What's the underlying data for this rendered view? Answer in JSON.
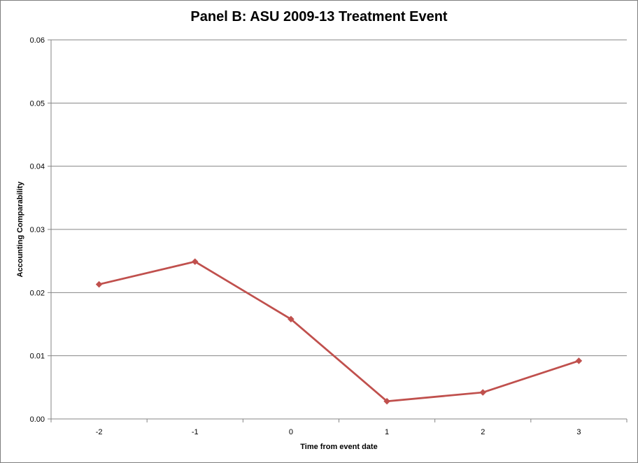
{
  "chart_data": {
    "type": "line",
    "title": "Panel B: ASU 2009-13 Treatment Event",
    "xlabel": "Time from event date",
    "ylabel": "Accounting Comparability",
    "categories": [
      "-2",
      "-1",
      "0",
      "1",
      "2",
      "3"
    ],
    "series": [
      {
        "values": [
          0.0213,
          0.0249,
          0.0158,
          0.0028,
          0.0042,
          0.0092
        ],
        "color": "#C0504D",
        "marker": "diamond"
      }
    ],
    "ylim": [
      0,
      0.06
    ],
    "yticks": [
      "0.00",
      "0.01",
      "0.02",
      "0.03",
      "0.04",
      "0.05",
      "0.06"
    ],
    "grid": true,
    "legend": "none"
  }
}
